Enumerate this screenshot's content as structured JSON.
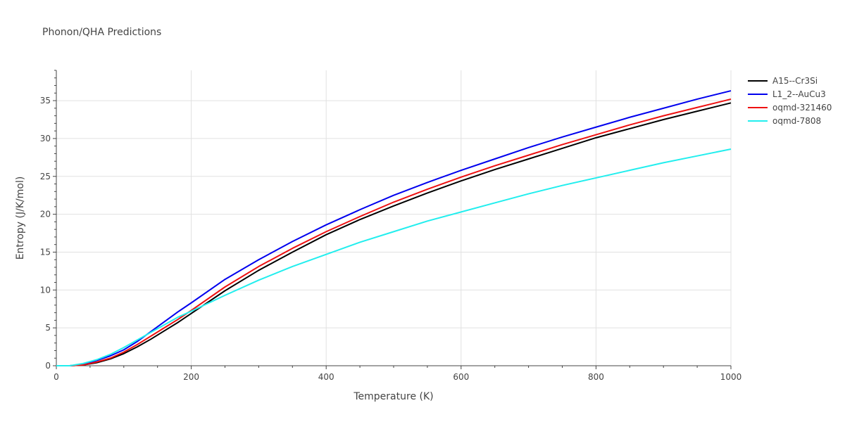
{
  "chart_data": {
    "type": "line",
    "title": "Phonon/QHA Predictions",
    "xlabel": "Temperature (K)",
    "ylabel": "Entropy (J/K/mol)",
    "xlim": [
      0,
      1000
    ],
    "ylim": [
      0,
      39
    ],
    "xticks": [
      0,
      200,
      400,
      600,
      800,
      1000
    ],
    "yticks": [
      0,
      5,
      10,
      15,
      20,
      25,
      30,
      35
    ],
    "xtick_labels": [
      "0",
      "200",
      "400",
      "600",
      "800",
      "1000"
    ],
    "ytick_labels": [
      "0",
      "5",
      "10",
      "15",
      "20",
      "25",
      "30",
      "35"
    ],
    "legend_position": "top-right",
    "grid": true,
    "x": [
      0,
      20,
      40,
      60,
      80,
      100,
      120,
      140,
      160,
      180,
      200,
      250,
      300,
      350,
      400,
      450,
      500,
      550,
      600,
      650,
      700,
      750,
      800,
      850,
      900,
      950,
      1000
    ],
    "series": [
      {
        "name": "A15--Cr3Si",
        "color": "#000000",
        "values": [
          0,
          0,
          0.1,
          0.4,
          0.9,
          1.6,
          2.5,
          3.5,
          4.6,
          5.7,
          6.9,
          9.9,
          12.6,
          15.0,
          17.3,
          19.3,
          21.1,
          22.8,
          24.4,
          25.9,
          27.3,
          28.7,
          30.1,
          31.3,
          32.5,
          33.6,
          34.7
        ]
      },
      {
        "name": "L1_2--AuCu3",
        "color": "#0000ee",
        "values": [
          0,
          0,
          0.2,
          0.7,
          1.3,
          2.1,
          3.2,
          4.5,
          5.8,
          7.1,
          8.3,
          11.4,
          14.0,
          16.4,
          18.6,
          20.6,
          22.5,
          24.2,
          25.8,
          27.3,
          28.8,
          30.2,
          31.5,
          32.8,
          34.0,
          35.2,
          36.3
        ]
      },
      {
        "name": "oqmd-321460",
        "color": "#ee1111",
        "values": [
          0,
          0,
          0.1,
          0.5,
          1.0,
          1.8,
          2.8,
          3.9,
          5.0,
          6.1,
          7.3,
          10.4,
          13.1,
          15.5,
          17.7,
          19.7,
          21.6,
          23.3,
          24.9,
          26.4,
          27.8,
          29.2,
          30.5,
          31.8,
          33.0,
          34.1,
          35.2
        ]
      },
      {
        "name": "oqmd-7808",
        "color": "#22eeee",
        "values": [
          0,
          0,
          0.3,
          0.8,
          1.5,
          2.4,
          3.4,
          4.4,
          5.4,
          6.4,
          7.2,
          9.3,
          11.3,
          13.1,
          14.7,
          16.3,
          17.7,
          19.1,
          20.3,
          21.5,
          22.7,
          23.8,
          24.8,
          25.8,
          26.8,
          27.7,
          28.6
        ]
      }
    ]
  }
}
